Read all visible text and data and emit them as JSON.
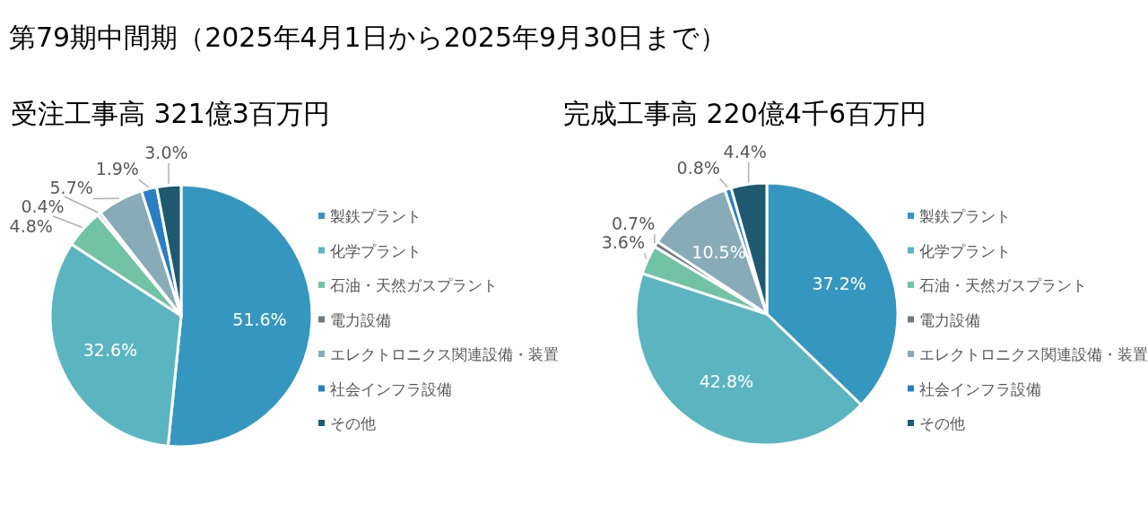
{
  "chart_data": [
    {
      "type": "pie",
      "title": "受注工事高 321億3百万円",
      "annotations": [
        "第79期中間期（2025年4月1日から2025年9月30日まで）"
      ],
      "categories": [
        "製鉄プラント",
        "化学プラント",
        "石油・天然ガスプラント",
        "電力設備",
        "エレクトロニクス関連設備・装置",
        "社会インフラ設備",
        "その他"
      ],
      "values": [
        51.6,
        32.6,
        4.8,
        0.4,
        5.7,
        1.9,
        3.0
      ],
      "value_labels": [
        "51.6%",
        "32.6%",
        "4.8%",
        "0.4%",
        "5.7%",
        "1.9%",
        "3.0%"
      ],
      "colors": [
        "#3597bf",
        "#5ab5c1",
        "#72c3a6",
        "#6e7a80",
        "#88abb8",
        "#2a7fc4",
        "#1e5970"
      ],
      "legend": "right"
    },
    {
      "type": "pie",
      "title": "完成工事高 220億4千6百万円",
      "categories": [
        "製鉄プラント",
        "化学プラント",
        "石油・天然ガスプラント",
        "電力設備",
        "エレクトロニクス関連設備・装置",
        "社会インフラ設備",
        "その他"
      ],
      "values": [
        37.2,
        42.8,
        3.6,
        0.7,
        10.5,
        0.8,
        4.4
      ],
      "value_labels": [
        "37.2%",
        "42.8%",
        "3.6%",
        "0.7%",
        "10.5%",
        "0.8%",
        "4.4%"
      ],
      "colors": [
        "#3597bf",
        "#5ab5c1",
        "#72c3a6",
        "#6e7a80",
        "#88abb8",
        "#2a7fc4",
        "#1e5970"
      ],
      "legend": "right"
    }
  ]
}
